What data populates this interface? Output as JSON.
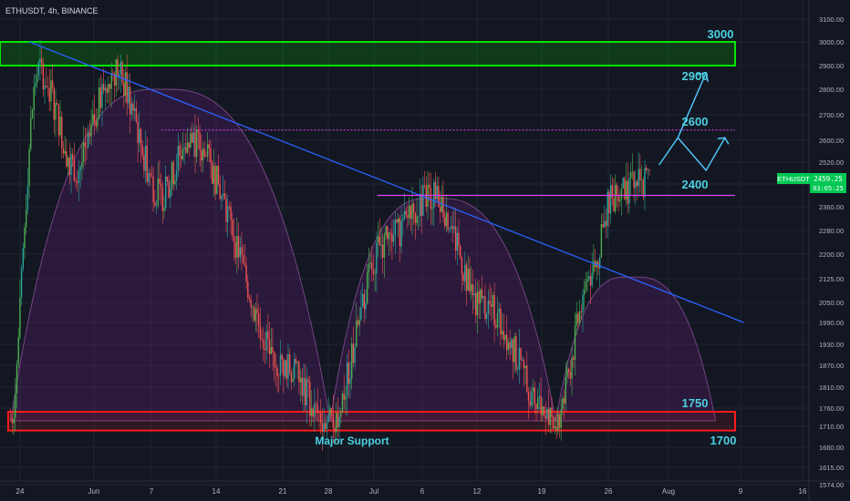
{
  "symbol_line": "ETHUSDT, 4h, BINANCE",
  "colors": {
    "background": "#131722",
    "grid": "#1f2433",
    "axis_text": "#b2b5be",
    "up": "#26a69a",
    "up_alt": "#4caf50",
    "down": "#ef5350",
    "resistance_zone": "#00e600",
    "support_zone": "#ff1a1a",
    "trendline": "#2962ff",
    "neckline": "#e040fb",
    "arc_fill": "rgba(156,39,176,0.18)",
    "arrow": "#4fc3f7",
    "label": "#4dd0e1",
    "price_tag_bg": "#00c853"
  },
  "price_axis": {
    "ticks": [
      "3100.00",
      "3000.00",
      "2900.00",
      "2800.00",
      "2700.00",
      "2600.00",
      "2520.00",
      "2440.00",
      "2360.00",
      "2280.00",
      "2200.00",
      "2125.00",
      "2050.00",
      "1990.00",
      "1930.00",
      "1870.00",
      "1810.00",
      "1760.00",
      "1710.00",
      "1660.00",
      "1615.00",
      "1574.00"
    ]
  },
  "time_axis": {
    "ticks": [
      "24",
      "Jun",
      "7",
      "14",
      "21",
      "28",
      "Jul",
      "6",
      "12",
      "19",
      "26",
      "Aug",
      "9",
      "16"
    ]
  },
  "current_price": {
    "symbol": "ETHUSDT",
    "price": "2459.25",
    "countdown": "03:05:25"
  },
  "annotations": {
    "level_3000": "3000",
    "level_2900": "2900",
    "level_2600": "2600",
    "level_2400": "2400",
    "level_1750": "1750",
    "level_1700": "1700",
    "support_text": "Major Support"
  },
  "chart_data": {
    "type": "candlestick",
    "timeframe": "4h",
    "exchange": "BINANCE",
    "symbol": "ETHUSDT",
    "price_trajectory_key_points": [
      {
        "date": "May 23",
        "price": 1730
      },
      {
        "date": "May 26",
        "price": 2880
      },
      {
        "date": "May 30",
        "price": 2500
      },
      {
        "date": "Jun 3",
        "price": 2880
      },
      {
        "date": "Jun 8",
        "price": 2400
      },
      {
        "date": "Jun 11",
        "price": 2600
      },
      {
        "date": "Jun 21",
        "price": 1870
      },
      {
        "date": "Jun 26",
        "price": 1720
      },
      {
        "date": "Jul 2",
        "price": 2250
      },
      {
        "date": "Jul 7",
        "price": 2400
      },
      {
        "date": "Jul 12",
        "price": 2050
      },
      {
        "date": "Jul 20",
        "price": 1720
      },
      {
        "date": "Jul 24",
        "price": 2150
      },
      {
        "date": "Jul 26",
        "price": 2400
      },
      {
        "date": "Jul 30",
        "price": 2459
      }
    ],
    "zones": [
      {
        "name": "resistance",
        "from": 2900,
        "to": 3000
      },
      {
        "name": "Major Support",
        "from": 1700,
        "to": 1750
      }
    ],
    "horizontal_lines": [
      {
        "price": 2400
      },
      {
        "price": 2640,
        "style": "dotted"
      }
    ],
    "trendline": {
      "from": {
        "date": "May 25",
        "price": 3000
      },
      "to": {
        "date": "Aug 9",
        "price": 1990
      }
    },
    "projected_arrows": [
      {
        "targets": [
          2400,
          2900
        ]
      },
      {
        "targets": [
          2400,
          2600
        ]
      }
    ]
  }
}
